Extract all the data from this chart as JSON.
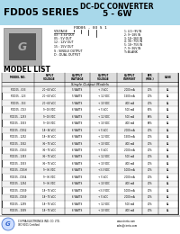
{
  "title_series": "FDD05 SERIES",
  "title_type": "DC-DC CONVERTER",
  "title_power": "5 - 6W",
  "header_bg": "#A8D8EA",
  "bg_color": "#FFFFFF",
  "model_code": "FDD05 - 03 S 1",
  "voltage_options": [
    "03 : 3.3V OUT",
    "05 : 5V OUT",
    "12 : 12V OUT",
    "15 : 15V OUT"
  ],
  "output_type": [
    "S : SINGLE OUTPUT",
    "D : DUAL OUTPUT"
  ],
  "suffix": "T=BLANK",
  "input_codes": [
    "1: 4.5~9V IN",
    "2: 9~18V IN",
    "3: 18~36V IN",
    "4: 36~75V IN",
    "5: 18~75V IN",
    "7: 9~36V IN"
  ],
  "model_list_title": "MODEL LIST",
  "table_rows": [
    [
      "FDD05 - 033",
      "20~60 VDC",
      "5 WATTS",
      "+ 3 VDC",
      "2000 mA",
      "70%",
      "A4"
    ],
    [
      "FDD05 - 123",
      "20~60 VDC",
      "5 WATTS",
      "+ 12 VDC",
      "1500 mA",
      "70%",
      "A4"
    ],
    [
      "FDD05 - 153",
      "20~60 VDC",
      "5 WATTS",
      "+ 15 VDC",
      "400 mA",
      "70%",
      "A4"
    ],
    [
      "FDD05 - D53",
      "9~18 VDC",
      "6 WATTS",
      "+ 5 VDC",
      "500 mA",
      "60%",
      "A4"
    ],
    [
      "FDD05 - 1253",
      "9~18 VDC",
      "6 WATTS",
      "+ 12 VDC",
      "500 mA",
      "68%",
      "A4"
    ],
    [
      "FDD05 - 1553",
      "9~18 VDC",
      "6 WATTS",
      "+ 15 VDC",
      "400 mA",
      "68%",
      "A4"
    ],
    [
      "FDD05 - D552",
      "18~36 VDC",
      "6 WATTS",
      "+ 5 VDC",
      "2000 mA",
      "70%",
      "A4"
    ],
    [
      "FDD05 - 1252",
      "18~36 VDC",
      "6 WATTS",
      "+ 12 VDC",
      "1500 mA",
      "70%",
      "A4"
    ],
    [
      "FDD05 - 1552",
      "36~75 VDC",
      "6 WATTS",
      "+ 15 VDC",
      "400 mA",
      "70%",
      "A4"
    ],
    [
      "FDD05 - D553",
      "36~75 VDC",
      "6 WATTS",
      "+ 5 VDC",
      "2000 mA",
      "70%",
      "A4"
    ],
    [
      "FDD05 - 1353",
      "36~75 VDC",
      "6 WATTS",
      "+ 12 VDC",
      "500 mA",
      "70%",
      "A4"
    ],
    [
      "FDD05 - 1553",
      "36~75 VDC",
      "6 WATTS",
      "+ 15 VDC",
      "400 mA",
      "70%",
      "A4"
    ],
    [
      "FDD05 - D55H",
      "9~36 VDC",
      "6 WATTS",
      "+3.3 VDC",
      "1000 mA",
      "70%",
      "A4"
    ],
    [
      "FDD05 - D554",
      "9~36 VDC",
      "6 WATTS",
      "+ 5 VDC",
      "2000 mA",
      "70%",
      "A4"
    ],
    [
      "FDD05 - 1254",
      "9~36 VDC",
      "6 WATTS",
      "+ 15 VDC",
      "400 mA",
      "70%",
      "A4"
    ],
    [
      "FDD05 - D559",
      "18~75 VDC",
      "6 WATTS",
      "+3.3 VDC",
      "1000 mA",
      "70%",
      "A4"
    ],
    [
      "FDD05 - D559",
      "18~75 VDC",
      "6 WATTS",
      "+ 5 VDC",
      "2000 mA",
      "70%",
      "A4"
    ],
    [
      "FDD05 - 1259",
      "18~75 VDC",
      "6 WATTS",
      "+ 12 VDC",
      "500 mA",
      "70%",
      "A4"
    ],
    [
      "FDD05 - 1559",
      "18~75 VDC",
      "6 WATTS",
      "+ 15 VDC",
      "400 mA",
      "70%",
      "A4"
    ]
  ],
  "company": "CINPRA ELECTRONICS IND. CO. LTD.",
  "iso": "ISO 9001 Certified",
  "website": "www.cinrta.com",
  "email": "sales@cinrta.com",
  "table_section": "Single Output Models"
}
